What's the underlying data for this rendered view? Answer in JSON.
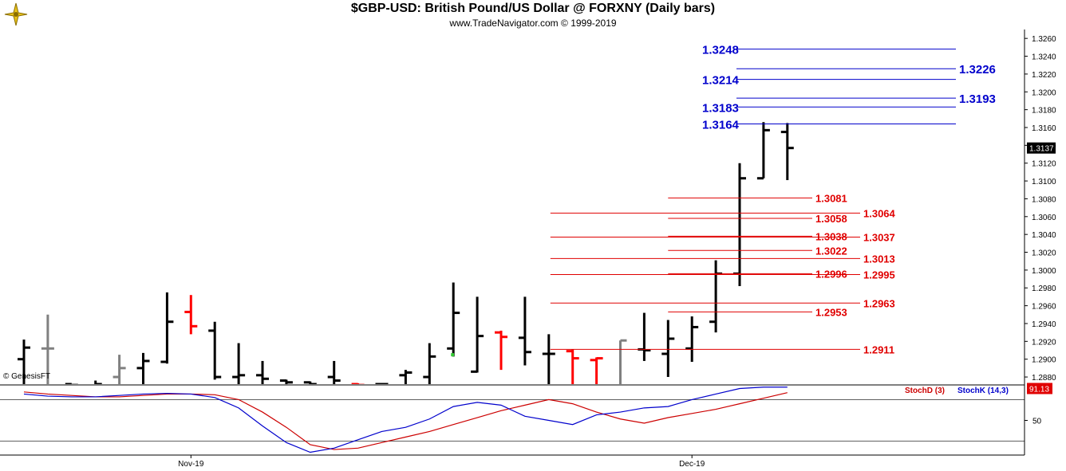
{
  "header": {
    "title": "$GBP-USD:  British Pound/US Dollar @ FORXNY  (Daily bars)",
    "subtitle": "www.TradeNavigator.com © 1999-2019"
  },
  "watermark": "© GenesisFT",
  "colors": {
    "bull": "#000000",
    "bear": "#ff0000",
    "neutral": "#808080",
    "blue_level": "#0000cc",
    "red_level": "#e00000",
    "stoch_d": "#cc0000",
    "stoch_k": "#0000cc"
  },
  "chart_data": [
    {
      "type": "ohlc",
      "title": "$GBP-USD:  British Pound/US Dollar @ FORXNY  (Daily bars)",
      "ylim": [
        1.2872,
        1.327
      ],
      "y_ticks": [
        "1.3260",
        "1.3240",
        "1.3220",
        "1.3200",
        "1.3180",
        "1.3160",
        "1.3140",
        "1.3120",
        "1.3100",
        "1.3080",
        "1.3060",
        "1.3040",
        "1.3020",
        "1.3000",
        "1.2980",
        "1.2960",
        "1.2940",
        "1.2920",
        "1.2900",
        "1.2880"
      ],
      "last_price": "1.3137",
      "x_labels": [
        {
          "label": "Nov-19",
          "bar": 7
        },
        {
          "label": "Dec-19",
          "bar": 28
        }
      ],
      "bars": [
        {
          "o": 1.29,
          "h": 1.2922,
          "l": 1.287,
          "c": 1.2913,
          "col": "bull"
        },
        {
          "o": 1.2912,
          "h": 1.295,
          "l": 1.287,
          "c": 1.2912,
          "col": "neutral"
        },
        {
          "o": 1.2872,
          "h": 1.2872,
          "l": 1.287,
          "c": 1.2871,
          "col": "bull"
        },
        {
          "o": 1.287,
          "h": 1.2876,
          "l": 1.2868,
          "c": 1.2872,
          "col": "bull"
        },
        {
          "o": 1.288,
          "h": 1.2905,
          "l": 1.287,
          "c": 1.289,
          "col": "neutral"
        },
        {
          "o": 1.289,
          "h": 1.2907,
          "l": 1.287,
          "c": 1.2898,
          "col": "bull"
        },
        {
          "o": 1.2897,
          "h": 1.2975,
          "l": 1.2895,
          "c": 1.2942,
          "col": "bull"
        },
        {
          "o": 1.2953,
          "h": 1.2972,
          "l": 1.2928,
          "c": 1.2937,
          "col": "bear"
        },
        {
          "o": 1.2932,
          "h": 1.2942,
          "l": 1.2877,
          "c": 1.288,
          "col": "bull"
        },
        {
          "o": 1.288,
          "h": 1.2918,
          "l": 1.2872,
          "c": 1.2882,
          "col": "bull"
        },
        {
          "o": 1.2882,
          "h": 1.2898,
          "l": 1.2872,
          "c": 1.2878,
          "col": "bull"
        },
        {
          "o": 1.2876,
          "h": 1.2877,
          "l": 1.287,
          "c": 1.2874,
          "col": "bull"
        },
        {
          "o": 1.2874,
          "h": 1.2875,
          "l": 1.287,
          "c": 1.2872,
          "col": "bull"
        },
        {
          "o": 1.288,
          "h": 1.2898,
          "l": 1.287,
          "c": 1.2876,
          "col": "bull"
        },
        {
          "o": 1.2872,
          "h": 1.2873,
          "l": 1.287,
          "c": 1.2871,
          "col": "bear"
        },
        {
          "o": 1.2872,
          "h": 1.2873,
          "l": 1.287,
          "c": 1.2872,
          "col": "bull"
        },
        {
          "o": 1.2882,
          "h": 1.2888,
          "l": 1.287,
          "c": 1.2885,
          "col": "bull"
        },
        {
          "o": 1.288,
          "h": 1.2918,
          "l": 1.287,
          "c": 1.2903,
          "col": "bull"
        },
        {
          "o": 1.2912,
          "h": 1.2986,
          "l": 1.2903,
          "c": 1.2952,
          "col": "bull"
        },
        {
          "o": 1.2886,
          "h": 1.297,
          "l": 1.2885,
          "c": 1.2926,
          "col": "bull"
        },
        {
          "o": 1.293,
          "h": 1.2932,
          "l": 1.2888,
          "c": 1.2925,
          "col": "bear"
        },
        {
          "o": 1.2924,
          "h": 1.297,
          "l": 1.2893,
          "c": 1.2908,
          "col": "bull"
        },
        {
          "o": 1.2906,
          "h": 1.2928,
          "l": 1.287,
          "c": 1.2906,
          "col": "bull"
        },
        {
          "o": 1.2909,
          "h": 1.2911,
          "l": 1.287,
          "c": 1.2901,
          "col": "bear"
        },
        {
          "o": 1.2899,
          "h": 1.2902,
          "l": 1.287,
          "c": 1.2901,
          "col": "bear"
        },
        {
          "o": 1.287,
          "h": 1.2921,
          "l": 1.287,
          "c": 1.2921,
          "col": "neutral"
        },
        {
          "o": 1.2911,
          "h": 1.2952,
          "l": 1.2898,
          "c": 1.291,
          "col": "bull"
        },
        {
          "o": 1.2906,
          "h": 1.2944,
          "l": 1.288,
          "c": 1.2923,
          "col": "bull"
        },
        {
          "o": 1.2912,
          "h": 1.2948,
          "l": 1.2897,
          "c": 1.2936,
          "col": "bull"
        },
        {
          "o": 1.2942,
          "h": 1.3011,
          "l": 1.293,
          "c": 1.2996,
          "col": "bull"
        },
        {
          "o": 1.2996,
          "h": 1.312,
          "l": 1.2982,
          "c": 1.3103,
          "col": "bull"
        },
        {
          "o": 1.3103,
          "h": 1.3166,
          "l": 1.3103,
          "c": 1.3157,
          "col": "bull"
        },
        {
          "o": 1.3155,
          "h": 1.3165,
          "l": 1.3101,
          "c": 1.3137,
          "col": "bull"
        }
      ],
      "green_ticks": [
        {
          "bar": 18,
          "price": 1.2905
        }
      ],
      "levels_blue": [
        {
          "label": "1.3248",
          "value": 1.3248,
          "side": "left"
        },
        {
          "label": "1.3226",
          "value": 1.3226,
          "side": "right"
        },
        {
          "label": "1.3214",
          "value": 1.3214,
          "side": "left"
        },
        {
          "label": "1.3193",
          "value": 1.3193,
          "side": "right"
        },
        {
          "label": "1.3183",
          "value": 1.3183,
          "side": "left"
        },
        {
          "label": "1.3164",
          "value": 1.3164,
          "side": "left"
        }
      ],
      "levels_red": [
        {
          "label": "1.3081",
          "value": 1.3081,
          "side": "left"
        },
        {
          "label": "1.3064",
          "value": 1.3064,
          "side": "right"
        },
        {
          "label": "1.3058",
          "value": 1.3058,
          "side": "left"
        },
        {
          "label": "1.3038",
          "value": 1.3038,
          "side": "left"
        },
        {
          "label": "1.3037",
          "value": 1.3037,
          "side": "right"
        },
        {
          "label": "1.3022",
          "value": 1.3022,
          "side": "left"
        },
        {
          "label": "1.3013",
          "value": 1.3013,
          "side": "right"
        },
        {
          "label": "1.2996",
          "value": 1.2996,
          "side": "left"
        },
        {
          "label": "1.2995",
          "value": 1.2995,
          "side": "right"
        },
        {
          "label": "1.2963",
          "value": 1.2963,
          "side": "right"
        },
        {
          "label": "1.2953",
          "value": 1.2953,
          "side": "left"
        },
        {
          "label": "1.2911",
          "value": 1.2911,
          "side": "right"
        }
      ]
    },
    {
      "type": "line",
      "legend": [
        "StochD (3)",
        "StochK (14,3)"
      ],
      "ylim": [
        0,
        100
      ],
      "y_ticks": [
        "50"
      ],
      "last_value": "91.13",
      "series": [
        {
          "name": "StochD (3)",
          "color": "stoch_d",
          "values": [
            91,
            88,
            86,
            84,
            84,
            86,
            88,
            88,
            87,
            80,
            62,
            40,
            15,
            8,
            10,
            18,
            26,
            34,
            44,
            54,
            64,
            72,
            80,
            74,
            62,
            52,
            46,
            54,
            60,
            66,
            74,
            82,
            90
          ]
        },
        {
          "name": "StochK (14,3)",
          "color": "stoch_k",
          "values": [
            88,
            85,
            84,
            84,
            86,
            88,
            89,
            88,
            83,
            68,
            42,
            18,
            4,
            10,
            22,
            34,
            40,
            52,
            70,
            76,
            72,
            56,
            50,
            44,
            58,
            62,
            68,
            70,
            80,
            88,
            96,
            98,
            98
          ]
        }
      ]
    }
  ]
}
